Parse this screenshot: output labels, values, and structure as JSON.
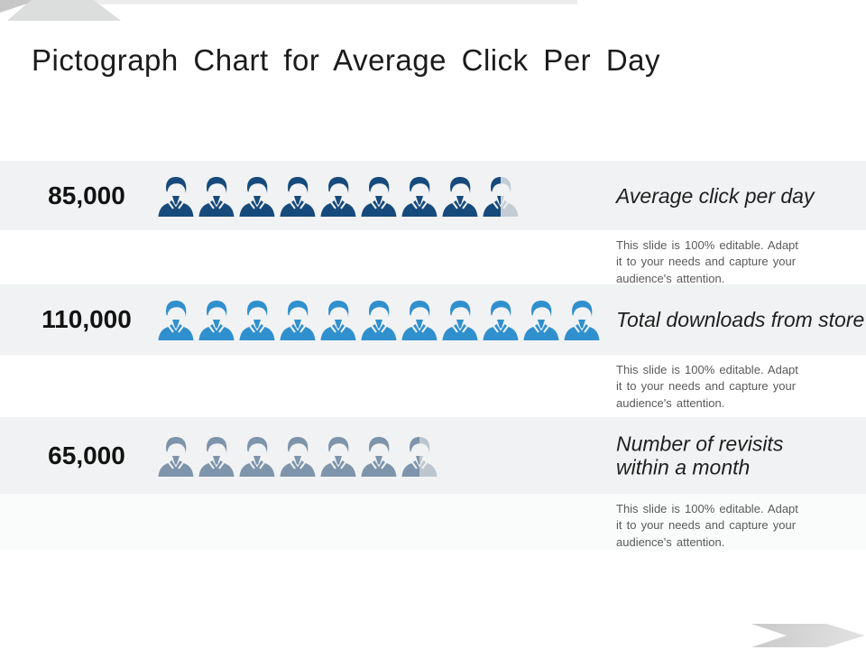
{
  "title": "Pictograph Chart for Average Click Per Day",
  "rows": [
    {
      "value": "85,000",
      "label": "Average click per day",
      "note": "This slide is 100% editable. Adapt\nit to your needs and capture your\naudience's attention.",
      "full_icons": 8,
      "has_half_icon": true,
      "icon_color": "#174a7c",
      "half_icon_right_color": "#c3ccd5"
    },
    {
      "value": "110,000",
      "label": "Total downloads from store",
      "note": "This slide is 100% editable. Adapt\nit to your needs and capture your\naudience's attention.",
      "full_icons": 11,
      "has_half_icon": false,
      "icon_color": "#3090ce",
      "half_icon_right_color": null
    },
    {
      "value": "65,000",
      "label": "Number of revisits within a month",
      "note": "This slide is 100% editable. Adapt\nit to your needs and capture your\naudience's attention.",
      "full_icons": 6,
      "has_half_icon": true,
      "icon_color": "#7e94ab",
      "half_icon_right_color": "#bcc6cf"
    }
  ],
  "icons": {
    "glyph": "person-bust-icon",
    "unit_value": 10000
  },
  "colors": {
    "band_gray": "#f1f2f3",
    "note_band3": "#fafbfb",
    "navy": "#174a7c",
    "azure": "#3090ce",
    "slate": "#7e94ab",
    "half_gray_1": "#c3ccd5",
    "half_gray_3": "#bcc6cf",
    "note_text": "#5a5a5a",
    "title_text": "#1b1b1b",
    "decoration_gray": "#dcdddd"
  },
  "chart_data": {
    "type": "bar",
    "variant": "pictograph",
    "orientation": "horizontal",
    "title": "Pictograph Chart for Average Click Per Day",
    "categories": [
      "Average click per day",
      "Total downloads from store",
      "Number of revisits within a month"
    ],
    "values": [
      85000,
      110000,
      65000
    ],
    "value_labels": [
      "85,000",
      "110,000",
      "65,000"
    ],
    "icon_unit": 10000,
    "icons_shown": [
      8.5,
      11,
      6.5
    ],
    "series_colors": [
      "#174a7c",
      "#3090ce",
      "#7e94ab"
    ],
    "legend": "none",
    "grid": false
  }
}
